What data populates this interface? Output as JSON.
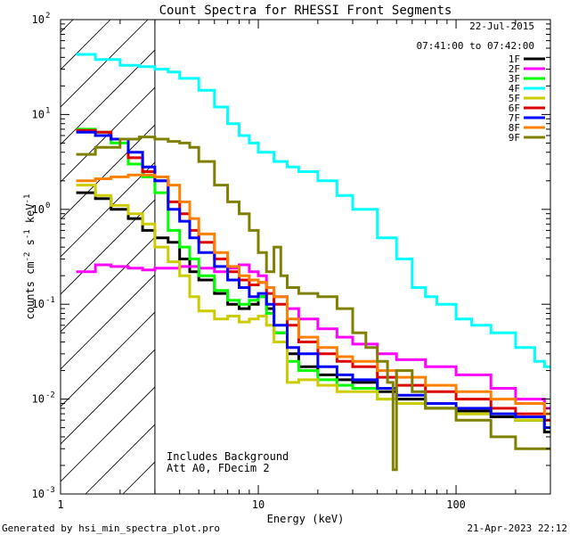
{
  "chart_data": {
    "type": "line",
    "title": "Count Spectra for RHESSI Front Segments",
    "xlabel": "Energy (keV)",
    "ylabel_parts": [
      "counts cm",
      "-2",
      " s",
      "-1",
      " keV",
      "-1"
    ],
    "x_scale": "log",
    "y_scale": "log",
    "xlim": [
      1,
      300
    ],
    "ylim": [
      0.001,
      100
    ],
    "x_ticks": [
      {
        "value": 1,
        "label": "1"
      },
      {
        "value": 10,
        "label": "10"
      },
      {
        "value": 100,
        "label": "100"
      }
    ],
    "y_ticks": [
      {
        "value": 0.001,
        "base": "10",
        "exp": "-3"
      },
      {
        "value": 0.01,
        "base": "10",
        "exp": "-2"
      },
      {
        "value": 0.1,
        "base": "10",
        "exp": "-1"
      },
      {
        "value": 1,
        "base": "10",
        "exp": "0"
      },
      {
        "value": 10,
        "base": "10",
        "exp": "1"
      },
      {
        "value": 100,
        "base": "10",
        "exp": "2"
      }
    ],
    "shaded_region": {
      "x_from": 1,
      "x_to": 3,
      "pattern": "diagonal hatch"
    },
    "date": "22-Jul-2015",
    "time_range": "07:41:00 to 07:42:00",
    "annotations": [
      "Includes Background",
      "Att A0, FDecim 2"
    ],
    "series": [
      {
        "name": "1F",
        "color": "#000000",
        "points": [
          [
            1.2,
            1.5
          ],
          [
            1.5,
            1.3
          ],
          [
            1.8,
            1.0
          ],
          [
            2.2,
            0.8
          ],
          [
            2.6,
            0.6
          ],
          [
            3.0,
            0.5
          ],
          [
            3.5,
            0.45
          ],
          [
            4.0,
            0.3
          ],
          [
            4.5,
            0.22
          ],
          [
            5.0,
            0.18
          ],
          [
            6.0,
            0.13
          ],
          [
            7.0,
            0.1
          ],
          [
            8.0,
            0.09
          ],
          [
            9.0,
            0.1
          ],
          [
            10,
            0.12
          ],
          [
            11,
            0.09
          ],
          [
            12,
            0.05
          ],
          [
            14,
            0.03
          ],
          [
            16,
            0.022
          ],
          [
            20,
            0.018
          ],
          [
            25,
            0.016
          ],
          [
            30,
            0.015
          ],
          [
            40,
            0.012
          ],
          [
            50,
            0.01
          ],
          [
            70,
            0.008
          ],
          [
            100,
            0.0075
          ],
          [
            150,
            0.0065
          ],
          [
            200,
            0.006
          ],
          [
            280,
            0.0045
          ]
        ]
      },
      {
        "name": "2F",
        "color": "#ff00ff",
        "points": [
          [
            1.2,
            0.22
          ],
          [
            1.5,
            0.26
          ],
          [
            1.8,
            0.25
          ],
          [
            2.2,
            0.24
          ],
          [
            2.6,
            0.23
          ],
          [
            3.0,
            0.24
          ],
          [
            4.0,
            0.25
          ],
          [
            5.0,
            0.24
          ],
          [
            6.0,
            0.22
          ],
          [
            7.0,
            0.24
          ],
          [
            8.0,
            0.26
          ],
          [
            9.0,
            0.22
          ],
          [
            10,
            0.2
          ],
          [
            11,
            0.15
          ],
          [
            12,
            0.12
          ],
          [
            14,
            0.09
          ],
          [
            16,
            0.07
          ],
          [
            20,
            0.055
          ],
          [
            25,
            0.045
          ],
          [
            30,
            0.038
          ],
          [
            40,
            0.03
          ],
          [
            50,
            0.026
          ],
          [
            70,
            0.022
          ],
          [
            100,
            0.018
          ],
          [
            150,
            0.013
          ],
          [
            200,
            0.01
          ],
          [
            280,
            0.008
          ]
        ]
      },
      {
        "name": "3F",
        "color": "#00ff00",
        "points": [
          [
            1.2,
            7
          ],
          [
            1.5,
            6.5
          ],
          [
            1.8,
            5
          ],
          [
            2.2,
            3
          ],
          [
            2.6,
            2.2
          ],
          [
            3.0,
            1.5
          ],
          [
            3.5,
            0.6
          ],
          [
            4.0,
            0.4
          ],
          [
            4.5,
            0.3
          ],
          [
            5.0,
            0.2
          ],
          [
            6.0,
            0.14
          ],
          [
            7.0,
            0.11
          ],
          [
            8.0,
            0.1
          ],
          [
            9.0,
            0.11
          ],
          [
            10,
            0.12
          ],
          [
            11,
            0.08
          ],
          [
            12,
            0.05
          ],
          [
            14,
            0.025
          ],
          [
            16,
            0.02
          ],
          [
            20,
            0.016
          ],
          [
            25,
            0.014
          ],
          [
            30,
            0.013
          ],
          [
            40,
            0.01
          ],
          [
            50,
            0.009
          ],
          [
            70,
            0.008
          ],
          [
            100,
            0.007
          ],
          [
            150,
            0.007
          ],
          [
            200,
            0.006
          ],
          [
            280,
            0.005
          ]
        ]
      },
      {
        "name": "4F",
        "color": "#00ffff",
        "points": [
          [
            1.2,
            43
          ],
          [
            1.5,
            38
          ],
          [
            2.0,
            33
          ],
          [
            2.5,
            32
          ],
          [
            3.0,
            30
          ],
          [
            3.5,
            28
          ],
          [
            4.0,
            24
          ],
          [
            5.0,
            18
          ],
          [
            6.0,
            12
          ],
          [
            7.0,
            8
          ],
          [
            8.0,
            6
          ],
          [
            9.0,
            5
          ],
          [
            10,
            4
          ],
          [
            12,
            3.2
          ],
          [
            14,
            2.8
          ],
          [
            16,
            2.5
          ],
          [
            20,
            2
          ],
          [
            25,
            1.4
          ],
          [
            30,
            1.0
          ],
          [
            40,
            0.5
          ],
          [
            50,
            0.3
          ],
          [
            60,
            0.15
          ],
          [
            70,
            0.12
          ],
          [
            80,
            0.1
          ],
          [
            100,
            0.07
          ],
          [
            120,
            0.06
          ],
          [
            150,
            0.05
          ],
          [
            200,
            0.035
          ],
          [
            250,
            0.025
          ],
          [
            280,
            0.022
          ]
        ]
      },
      {
        "name": "5F",
        "color": "#cccc00",
        "points": [
          [
            1.2,
            1.8
          ],
          [
            1.5,
            1.4
          ],
          [
            1.8,
            1.1
          ],
          [
            2.2,
            0.9
          ],
          [
            2.6,
            0.7
          ],
          [
            3.0,
            0.4
          ],
          [
            3.5,
            0.28
          ],
          [
            4.0,
            0.2
          ],
          [
            4.5,
            0.12
          ],
          [
            5.0,
            0.085
          ],
          [
            6.0,
            0.07
          ],
          [
            7.0,
            0.075
          ],
          [
            8.0,
            0.065
          ],
          [
            9.0,
            0.07
          ],
          [
            10,
            0.075
          ],
          [
            11,
            0.06
          ],
          [
            12,
            0.04
          ],
          [
            14,
            0.015
          ],
          [
            16,
            0.016
          ],
          [
            20,
            0.014
          ],
          [
            25,
            0.012
          ],
          [
            30,
            0.012
          ],
          [
            40,
            0.01
          ],
          [
            50,
            0.009
          ],
          [
            70,
            0.008
          ],
          [
            100,
            0.007
          ],
          [
            150,
            0.007
          ],
          [
            200,
            0.006
          ],
          [
            280,
            0.005
          ]
        ]
      },
      {
        "name": "6F",
        "color": "#dd0000",
        "points": [
          [
            1.2,
            6.8
          ],
          [
            1.5,
            6.5
          ],
          [
            1.8,
            5.5
          ],
          [
            2.2,
            3.5
          ],
          [
            2.6,
            2.5
          ],
          [
            3.0,
            2.0
          ],
          [
            3.5,
            1.2
          ],
          [
            4.0,
            0.9
          ],
          [
            4.5,
            0.6
          ],
          [
            5.0,
            0.45
          ],
          [
            6.0,
            0.3
          ],
          [
            7.0,
            0.22
          ],
          [
            8.0,
            0.18
          ],
          [
            9.0,
            0.16
          ],
          [
            10,
            0.17
          ],
          [
            11,
            0.13
          ],
          [
            12,
            0.1
          ],
          [
            14,
            0.06
          ],
          [
            16,
            0.04
          ],
          [
            20,
            0.03
          ],
          [
            25,
            0.025
          ],
          [
            30,
            0.022
          ],
          [
            40,
            0.017
          ],
          [
            50,
            0.014
          ],
          [
            70,
            0.012
          ],
          [
            100,
            0.01
          ],
          [
            150,
            0.008
          ],
          [
            200,
            0.007
          ],
          [
            280,
            0.006
          ]
        ]
      },
      {
        "name": "7F",
        "color": "#0000ff",
        "points": [
          [
            1.2,
            6.5
          ],
          [
            1.5,
            6.0
          ],
          [
            1.8,
            5.5
          ],
          [
            2.2,
            4.0
          ],
          [
            2.6,
            2.8
          ],
          [
            3.0,
            2.0
          ],
          [
            3.5,
            1.0
          ],
          [
            4.0,
            0.75
          ],
          [
            4.5,
            0.5
          ],
          [
            5.0,
            0.35
          ],
          [
            6.0,
            0.25
          ],
          [
            7.0,
            0.18
          ],
          [
            8.0,
            0.15
          ],
          [
            9.0,
            0.12
          ],
          [
            10,
            0.13
          ],
          [
            11,
            0.1
          ],
          [
            12,
            0.06
          ],
          [
            14,
            0.035
          ],
          [
            16,
            0.03
          ],
          [
            20,
            0.022
          ],
          [
            25,
            0.018
          ],
          [
            30,
            0.016
          ],
          [
            40,
            0.013
          ],
          [
            50,
            0.011
          ],
          [
            70,
            0.009
          ],
          [
            100,
            0.008
          ],
          [
            150,
            0.007
          ],
          [
            200,
            0.0065
          ],
          [
            280,
            0.005
          ]
        ]
      },
      {
        "name": "8F",
        "color": "#ff8000",
        "points": [
          [
            1.2,
            2.0
          ],
          [
            1.5,
            2.1
          ],
          [
            1.8,
            2.2
          ],
          [
            2.2,
            2.3
          ],
          [
            2.6,
            2.3
          ],
          [
            3.0,
            2.2
          ],
          [
            3.5,
            1.8
          ],
          [
            4.0,
            1.2
          ],
          [
            4.5,
            0.8
          ],
          [
            5.0,
            0.55
          ],
          [
            6.0,
            0.35
          ],
          [
            7.0,
            0.25
          ],
          [
            8.0,
            0.2
          ],
          [
            9.0,
            0.18
          ],
          [
            10,
            0.17
          ],
          [
            11,
            0.15
          ],
          [
            12,
            0.12
          ],
          [
            14,
            0.07
          ],
          [
            16,
            0.045
          ],
          [
            20,
            0.035
          ],
          [
            25,
            0.028
          ],
          [
            30,
            0.025
          ],
          [
            40,
            0.02
          ],
          [
            50,
            0.017
          ],
          [
            70,
            0.014
          ],
          [
            100,
            0.012
          ],
          [
            150,
            0.01
          ],
          [
            200,
            0.009
          ],
          [
            280,
            0.007
          ]
        ]
      },
      {
        "name": "9F",
        "color": "#808000",
        "points": [
          [
            1.2,
            3.8
          ],
          [
            1.5,
            4.5
          ],
          [
            2.0,
            5.5
          ],
          [
            2.5,
            5.8
          ],
          [
            3.0,
            5.5
          ],
          [
            3.5,
            5.2
          ],
          [
            4.0,
            5.0
          ],
          [
            4.5,
            4.5
          ],
          [
            5.0,
            3.2
          ],
          [
            6.0,
            1.8
          ],
          [
            7.0,
            1.2
          ],
          [
            8.0,
            0.9
          ],
          [
            9.0,
            0.6
          ],
          [
            10,
            0.35
          ],
          [
            11,
            0.22
          ],
          [
            12,
            0.4
          ],
          [
            13,
            0.2
          ],
          [
            14,
            0.15
          ],
          [
            16,
            0.13
          ],
          [
            20,
            0.12
          ],
          [
            25,
            0.09
          ],
          [
            30,
            0.05
          ],
          [
            35,
            0.035
          ],
          [
            40,
            0.025
          ],
          [
            45,
            0.015
          ],
          [
            48,
            0.0018
          ],
          [
            50,
            0.02
          ],
          [
            60,
            0.012
          ],
          [
            70,
            0.008
          ],
          [
            100,
            0.006
          ],
          [
            150,
            0.004
          ],
          [
            200,
            0.003
          ],
          [
            280,
            0.003
          ]
        ]
      }
    ]
  },
  "footer": {
    "generated_by": "Generated by hsi_min_spectra_plot.pro",
    "timestamp": "21-Apr-2023 22:12"
  }
}
